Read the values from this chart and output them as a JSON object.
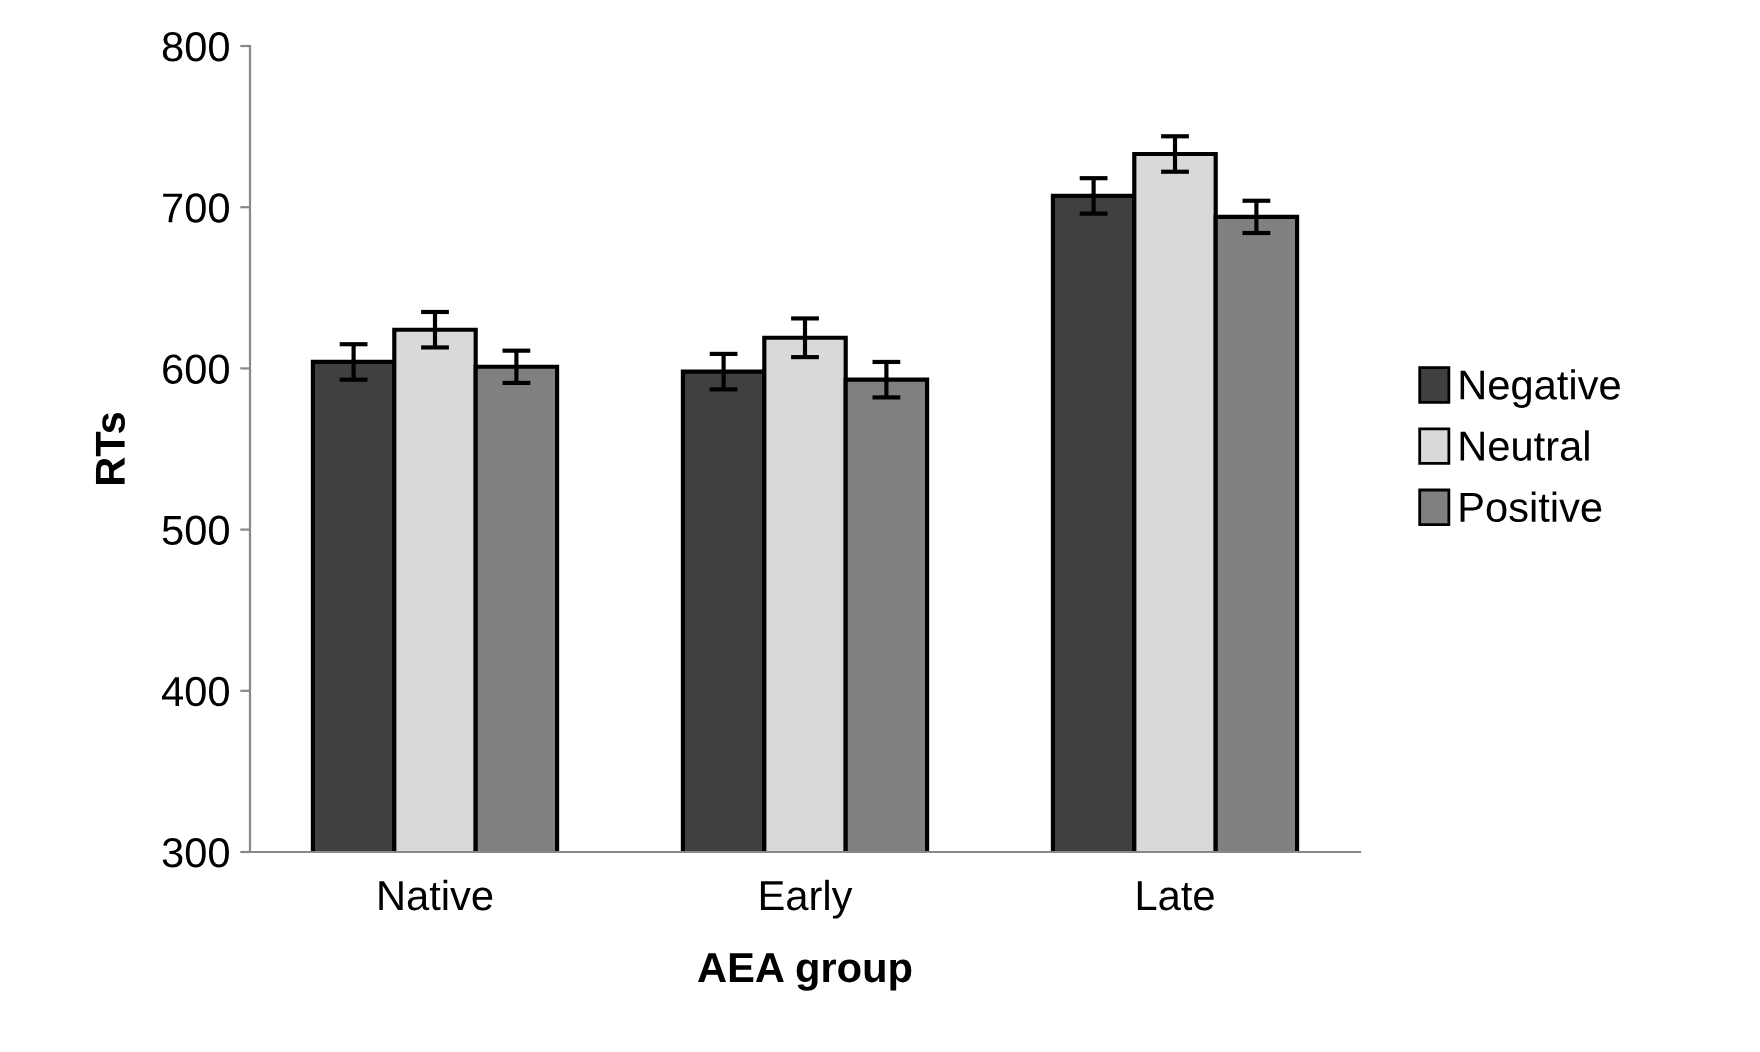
{
  "chart_data": {
    "type": "bar",
    "xlabel": "AEA group",
    "ylabel": "RTs",
    "categories": [
      "Native",
      "Early",
      "Late"
    ],
    "series": [
      {
        "name": "Negative",
        "color": "#404040",
        "values": [
          604,
          598,
          707
        ],
        "errors": [
          11,
          11,
          11
        ]
      },
      {
        "name": "Neutral",
        "color": "#d9d9d9",
        "values": [
          624,
          619,
          733
        ],
        "errors": [
          11,
          12,
          11
        ]
      },
      {
        "name": "Positive",
        "color": "#808080",
        "values": [
          601,
          593,
          694
        ],
        "errors": [
          10,
          11,
          10
        ]
      }
    ],
    "ylim": [
      300,
      800
    ],
    "yticks": [
      300,
      400,
      500,
      600,
      700,
      800
    ],
    "grid": false,
    "legend": "right"
  }
}
